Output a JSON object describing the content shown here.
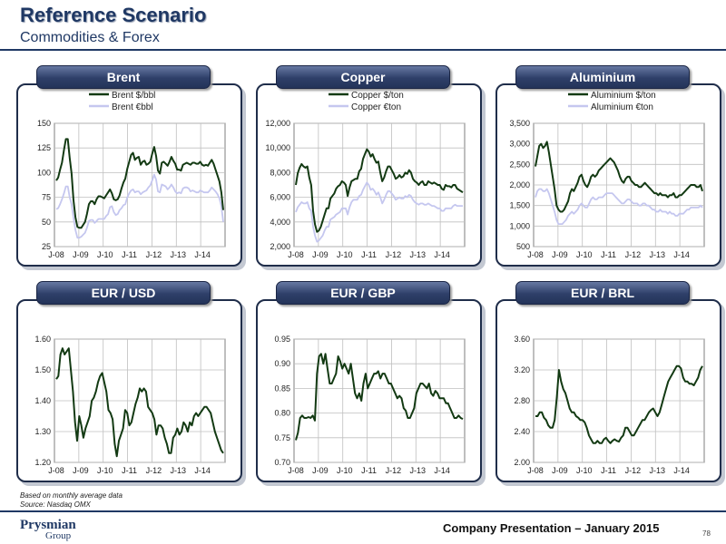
{
  "header": {
    "title": "Reference Scenario",
    "subtitle": "Commodities & Forex"
  },
  "footer": {
    "note1": "Based on monthly average data",
    "note2": "Source: Nasdaq OMX",
    "brand": "Prysmian",
    "brand_sub": "Group",
    "presentation": "Company Presentation – January 2015",
    "page": "78"
  },
  "colors": {
    "navy": "#1f3864",
    "dark_line": "#133a13",
    "light_line": "#c5c7ef",
    "grid": "#bfbfbf"
  },
  "chart_data": [
    {
      "id": "brent",
      "type": "line",
      "tab": "Brent",
      "xticks": [
        "J-08",
        "J-09",
        "J-10",
        "J-11",
        "J-12",
        "J-13",
        "J-14"
      ],
      "yticks": [
        "25",
        "50",
        "75",
        "100",
        "125",
        "150"
      ],
      "ylim": [
        25,
        150
      ],
      "series": [
        {
          "name": "Brent $/bbl",
          "color": "#133a13",
          "values": [
            92,
            95,
            103,
            110,
            123,
            134,
            134,
            115,
            99,
            72,
            55,
            45,
            44,
            44,
            47,
            50,
            58,
            68,
            71,
            71,
            68,
            73,
            76,
            76,
            75,
            74,
            77,
            80,
            83,
            79,
            73,
            72,
            73,
            77,
            84,
            90,
            94,
            104,
            111,
            118,
            120,
            113,
            115,
            116,
            108,
            111,
            112,
            108,
            109,
            111,
            119,
            126,
            117,
            102,
            99,
            110,
            111,
            109,
            107,
            111,
            116,
            112,
            109,
            103,
            103,
            102,
            108,
            109,
            110,
            109,
            108,
            110,
            110,
            109,
            109,
            111,
            108,
            107,
            108,
            107,
            110,
            113,
            109,
            103,
            97,
            91,
            80,
            62
          ]
        },
        {
          "name": "Brent €bbl",
          "color": "#c5c7ef",
          "values": [
            63,
            64,
            68,
            73,
            79,
            86,
            86,
            75,
            68,
            54,
            42,
            34,
            34,
            35,
            37,
            39,
            44,
            51,
            52,
            52,
            49,
            51,
            53,
            53,
            53,
            53,
            56,
            58,
            65,
            66,
            60,
            57,
            58,
            62,
            64,
            67,
            68,
            75,
            79,
            82,
            83,
            80,
            81,
            81,
            78,
            80,
            81,
            82,
            85,
            87,
            92,
            98,
            93,
            81,
            80,
            88,
            87,
            86,
            83,
            85,
            88,
            85,
            81,
            79,
            80,
            79,
            84,
            85,
            85,
            84,
            81,
            82,
            81,
            80,
            80,
            82,
            81,
            80,
            80,
            80,
            82,
            85,
            83,
            81,
            78,
            74,
            66,
            50
          ]
        }
      ]
    },
    {
      "id": "copper",
      "type": "line",
      "tab": "Copper",
      "xticks": [
        "J-08",
        "J-09",
        "J-10",
        "J-11",
        "J-12",
        "J-13",
        "J-14"
      ],
      "yticks": [
        "2,000",
        "4,000",
        "6,000",
        "8,000",
        "10,000",
        "12,000"
      ],
      "ylim": [
        2000,
        12000
      ],
      "series": [
        {
          "name": "Copper $/ton",
          "color": "#133a13",
          "values": [
            7000,
            7950,
            8400,
            8700,
            8500,
            8400,
            8500,
            7600,
            7000,
            4900,
            3800,
            3200,
            3300,
            3600,
            4100,
            4600,
            5100,
            5100,
            5900,
            6100,
            6300,
            6700,
            6900,
            7000,
            7300,
            7200,
            7000,
            6100,
            6800,
            7300,
            7400,
            7500,
            7500,
            8100,
            8300,
            9100,
            9500,
            9900,
            9700,
            9300,
            9500,
            9100,
            8800,
            8900,
            8000,
            7300,
            7600,
            8100,
            8500,
            8500,
            8200,
            7900,
            7500,
            7600,
            7800,
            7600,
            7700,
            8000,
            7900,
            8200,
            8000,
            7500,
            7300,
            7200,
            7000,
            7200,
            7300,
            7000,
            7000,
            7300,
            7200,
            7100,
            7200,
            7100,
            7000,
            7000,
            6700,
            6600,
            7000,
            6900,
            6900,
            6800,
            7000,
            7000,
            6700,
            6600,
            6500,
            6400
          ]
        },
        {
          "name": "Copper €ton",
          "color": "#c5c7ef",
          "values": [
            4800,
            5200,
            5400,
            5600,
            5500,
            5500,
            5600,
            5100,
            4900,
            3600,
            2900,
            2400,
            2500,
            2700,
            2900,
            3300,
            3600,
            3600,
            4200,
            4300,
            4400,
            4600,
            4700,
            4800,
            5100,
            5100,
            5100,
            4600,
            5200,
            5600,
            5800,
            5800,
            5800,
            6100,
            6200,
            6600,
            6900,
            7200,
            7000,
            6600,
            6700,
            6500,
            6200,
            6400,
            6000,
            5500,
            5800,
            6200,
            6500,
            6500,
            6300,
            6100,
            5800,
            5900,
            6000,
            5900,
            5900,
            6100,
            6000,
            6200,
            6100,
            5800,
            5600,
            5500,
            5400,
            5500,
            5500,
            5400,
            5400,
            5500,
            5400,
            5300,
            5300,
            5200,
            5100,
            5100,
            4900,
            4900,
            5100,
            5100,
            5100,
            5100,
            5300,
            5400,
            5300,
            5300,
            5300,
            5300
          ]
        }
      ]
    },
    {
      "id": "aluminium",
      "type": "line",
      "tab": "Aluminium",
      "xticks": [
        "J-08",
        "J-09",
        "J-10",
        "J-11",
        "J-12",
        "J-13",
        "J-14"
      ],
      "yticks": [
        "500",
        "1,000",
        "1,500",
        "2,000",
        "2,500",
        "3,000",
        "3,500"
      ],
      "ylim": [
        500,
        3500
      ],
      "series": [
        {
          "name": "Aluminium $/ton",
          "color": "#133a13",
          "values": [
            2450,
            2700,
            2950,
            3000,
            2900,
            2950,
            3050,
            2800,
            2500,
            2200,
            1900,
            1500,
            1400,
            1350,
            1350,
            1400,
            1500,
            1600,
            1800,
            1900,
            1850,
            1950,
            2050,
            2200,
            2250,
            2100,
            2000,
            1950,
            2050,
            2200,
            2250,
            2200,
            2250,
            2350,
            2400,
            2450,
            2500,
            2550,
            2600,
            2650,
            2600,
            2550,
            2450,
            2350,
            2200,
            2100,
            2050,
            2150,
            2200,
            2200,
            2100,
            2050,
            2000,
            2000,
            1950,
            1950,
            2000,
            2050,
            2000,
            1950,
            1900,
            1850,
            1800,
            1800,
            1750,
            1800,
            1750,
            1750,
            1750,
            1700,
            1750,
            1750,
            1800,
            1700,
            1700,
            1750,
            1750,
            1800,
            1850,
            1900,
            1950,
            2000,
            2000,
            2000,
            1950,
            1950,
            2000,
            1850
          ]
        },
        {
          "name": "Aluminium €ton",
          "color": "#c5c7ef",
          "values": [
            1700,
            1850,
            1900,
            1900,
            1850,
            1850,
            1900,
            1800,
            1650,
            1500,
            1350,
            1150,
            1050,
            1050,
            1050,
            1100,
            1150,
            1250,
            1300,
            1350,
            1300,
            1350,
            1400,
            1500,
            1550,
            1500,
            1450,
            1450,
            1550,
            1650,
            1700,
            1650,
            1650,
            1700,
            1700,
            1700,
            1750,
            1800,
            1800,
            1800,
            1800,
            1750,
            1700,
            1650,
            1600,
            1550,
            1550,
            1600,
            1650,
            1650,
            1600,
            1550,
            1550,
            1550,
            1500,
            1500,
            1550,
            1550,
            1500,
            1500,
            1450,
            1400,
            1400,
            1350,
            1350,
            1400,
            1350,
            1350,
            1350,
            1300,
            1350,
            1300,
            1300,
            1250,
            1250,
            1300,
            1300,
            1300,
            1350,
            1400,
            1400,
            1450,
            1450,
            1450,
            1450,
            1450,
            1500,
            1450
          ]
        }
      ]
    },
    {
      "id": "eurusd",
      "type": "line",
      "tab": "EUR / USD",
      "xticks": [
        "J-08",
        "J-09",
        "J-10",
        "J-11",
        "J-12",
        "J-13",
        "J-14"
      ],
      "yticks": [
        "1.20",
        "1.30",
        "1.40",
        "1.50",
        "1.60"
      ],
      "ylim": [
        1.2,
        1.6
      ],
      "series": [
        {
          "name": "EUR / USD",
          "color": "#133a13",
          "values": [
            1.47,
            1.48,
            1.55,
            1.57,
            1.55,
            1.56,
            1.57,
            1.5,
            1.43,
            1.33,
            1.27,
            1.35,
            1.32,
            1.28,
            1.31,
            1.33,
            1.35,
            1.4,
            1.41,
            1.43,
            1.46,
            1.48,
            1.49,
            1.46,
            1.43,
            1.37,
            1.36,
            1.34,
            1.26,
            1.22,
            1.27,
            1.29,
            1.31,
            1.37,
            1.36,
            1.32,
            1.33,
            1.36,
            1.39,
            1.41,
            1.44,
            1.43,
            1.44,
            1.43,
            1.38,
            1.37,
            1.36,
            1.34,
            1.29,
            1.32,
            1.32,
            1.31,
            1.28,
            1.26,
            1.23,
            1.23,
            1.28,
            1.29,
            1.31,
            1.29,
            1.3,
            1.33,
            1.32,
            1.3,
            1.33,
            1.32,
            1.35,
            1.36,
            1.35,
            1.36,
            1.37,
            1.38,
            1.38,
            1.37,
            1.36,
            1.33,
            1.3,
            1.28,
            1.26,
            1.24,
            1.23
          ]
        }
      ]
    },
    {
      "id": "eurgbp",
      "type": "line",
      "tab": "EUR / GBP",
      "xticks": [
        "J-08",
        "J-09",
        "J-10",
        "J-11",
        "J-12",
        "J-13",
        "J-14"
      ],
      "yticks": [
        "0.70",
        "0.75",
        "0.80",
        "0.85",
        "0.90",
        "0.95"
      ],
      "ylim": [
        0.7,
        0.95
      ],
      "series": [
        {
          "name": "EUR / GBP",
          "color": "#133a13",
          "values": [
            0.745,
            0.76,
            0.79,
            0.795,
            0.79,
            0.79,
            0.792,
            0.79,
            0.795,
            0.785,
            0.88,
            0.915,
            0.92,
            0.9,
            0.92,
            0.89,
            0.86,
            0.86,
            0.87,
            0.88,
            0.915,
            0.905,
            0.89,
            0.9,
            0.89,
            0.88,
            0.9,
            0.87,
            0.84,
            0.83,
            0.84,
            0.825,
            0.86,
            0.88,
            0.85,
            0.86,
            0.87,
            0.88,
            0.88,
            0.885,
            0.87,
            0.88,
            0.88,
            0.87,
            0.86,
            0.86,
            0.85,
            0.84,
            0.83,
            0.835,
            0.83,
            0.81,
            0.805,
            0.79,
            0.79,
            0.8,
            0.81,
            0.84,
            0.85,
            0.86,
            0.86,
            0.855,
            0.85,
            0.86,
            0.84,
            0.835,
            0.845,
            0.84,
            0.83,
            0.83,
            0.83,
            0.82,
            0.82,
            0.81,
            0.8,
            0.79,
            0.79,
            0.795,
            0.79,
            0.788
          ]
        }
      ]
    },
    {
      "id": "eurbrl",
      "type": "line",
      "tab": "EUR / BRL",
      "xticks": [
        "J-08",
        "J-09",
        "J-10",
        "J-11",
        "J-12",
        "J-13",
        "J-14"
      ],
      "yticks": [
        "2.00",
        "2.40",
        "2.80",
        "3.20",
        "3.60"
      ],
      "ylim": [
        2.0,
        3.6
      ],
      "series": [
        {
          "name": "EUR / BRL",
          "color": "#133a13",
          "values": [
            2.6,
            2.6,
            2.65,
            2.65,
            2.58,
            2.55,
            2.48,
            2.45,
            2.45,
            2.55,
            2.85,
            3.2,
            3.05,
            2.95,
            2.9,
            2.8,
            2.7,
            2.65,
            2.65,
            2.6,
            2.58,
            2.55,
            2.55,
            2.52,
            2.45,
            2.35,
            2.3,
            2.25,
            2.25,
            2.28,
            2.25,
            2.25,
            2.3,
            2.32,
            2.28,
            2.25,
            2.28,
            2.3,
            2.28,
            2.27,
            2.32,
            2.35,
            2.45,
            2.45,
            2.4,
            2.35,
            2.35,
            2.4,
            2.45,
            2.5,
            2.55,
            2.55,
            2.6,
            2.65,
            2.68,
            2.7,
            2.65,
            2.6,
            2.65,
            2.75,
            2.85,
            2.95,
            3.05,
            3.1,
            3.15,
            3.2,
            3.25,
            3.25,
            3.22,
            3.1,
            3.05,
            3.05,
            3.02,
            3.02,
            3.0,
            3.05,
            3.1,
            3.2,
            3.25
          ]
        }
      ]
    }
  ]
}
